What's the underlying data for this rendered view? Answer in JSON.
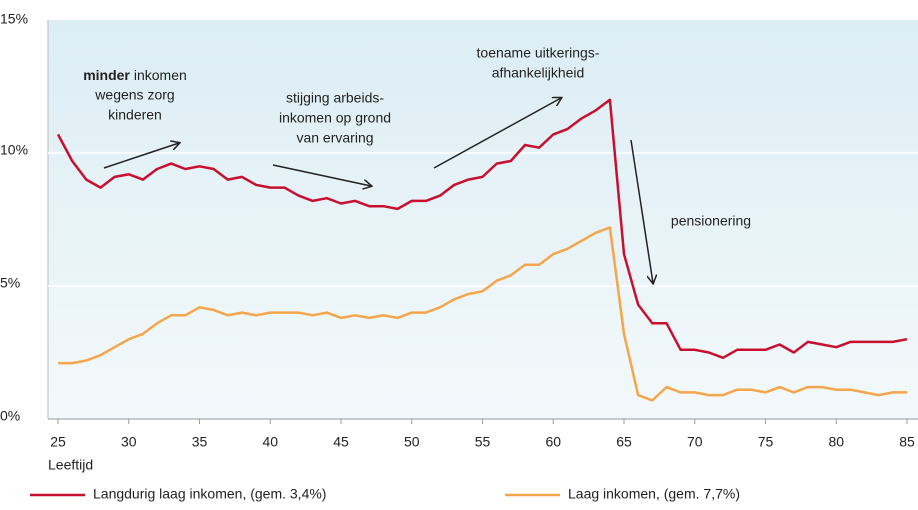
{
  "chart_data": {
    "type": "line",
    "x_label": "Leeftijd",
    "x": [
      25,
      26,
      27,
      28,
      29,
      30,
      31,
      32,
      33,
      34,
      35,
      36,
      37,
      38,
      39,
      40,
      41,
      42,
      43,
      44,
      45,
      46,
      47,
      48,
      49,
      50,
      51,
      52,
      53,
      54,
      55,
      56,
      57,
      58,
      59,
      60,
      61,
      62,
      63,
      64,
      65,
      66,
      67,
      68,
      69,
      70,
      71,
      72,
      73,
      74,
      75,
      76,
      77,
      78,
      79,
      80,
      81,
      82,
      83,
      84,
      85
    ],
    "xlim": [
      25,
      85
    ],
    "xticks": [
      25,
      30,
      35,
      40,
      45,
      50,
      55,
      60,
      65,
      70,
      75,
      80,
      85
    ],
    "ylim": [
      0,
      15
    ],
    "yticks": [
      {
        "value": 0,
        "label": "0%"
      },
      {
        "value": 5,
        "label": "5%"
      },
      {
        "value": 10,
        "label": "10%"
      },
      {
        "value": 15,
        "label": "15%"
      }
    ],
    "grid": true,
    "series": [
      {
        "name": "Langdurig laag inkomen, (gem. 3,4%)",
        "color": "#c8102e",
        "values": [
          10.7,
          9.7,
          9.0,
          8.7,
          9.1,
          9.2,
          9.0,
          9.4,
          9.6,
          9.4,
          9.5,
          9.4,
          9.0,
          9.1,
          8.8,
          8.7,
          8.7,
          8.4,
          8.2,
          8.3,
          8.1,
          8.2,
          8.0,
          8.0,
          7.9,
          8.2,
          8.2,
          8.4,
          8.8,
          9.0,
          9.1,
          9.6,
          9.7,
          10.3,
          10.2,
          10.7,
          10.9,
          11.3,
          11.6,
          12.0,
          6.2,
          4.3,
          3.6,
          3.6,
          2.6,
          2.6,
          2.5,
          2.3,
          2.6,
          2.6,
          2.6,
          2.8,
          2.5,
          2.9,
          2.8,
          2.7,
          2.9,
          2.9,
          2.9,
          2.9,
          3.0
        ]
      },
      {
        "name": "Laag inkomen, (gem. 7,7%)",
        "color": "#f5a54a",
        "values": [
          2.1,
          2.1,
          2.2,
          2.4,
          2.7,
          3.0,
          3.2,
          3.6,
          3.9,
          3.9,
          4.2,
          4.1,
          3.9,
          4.0,
          3.9,
          4.0,
          4.0,
          4.0,
          3.9,
          4.0,
          3.8,
          3.9,
          3.8,
          3.9,
          3.8,
          4.0,
          4.0,
          4.2,
          4.5,
          4.7,
          4.8,
          5.2,
          5.4,
          5.8,
          5.8,
          6.2,
          6.4,
          6.7,
          7.0,
          7.2,
          3.2,
          0.9,
          0.7,
          1.2,
          1.0,
          1.0,
          0.9,
          0.9,
          1.1,
          1.1,
          1.0,
          1.2,
          1.0,
          1.2,
          1.2,
          1.1,
          1.1,
          1.0,
          0.9,
          1.0,
          1.0
        ]
      }
    ],
    "annotations": [
      {
        "emphasis": "minder",
        "lines": [
          "inkomen",
          "wegens zorg",
          "kinderen"
        ]
      },
      {
        "lines": [
          "stijging arbeids-",
          "inkomen op grond",
          "van ervaring"
        ]
      },
      {
        "lines": [
          "toename uitkerings-",
          "afhankelijkheid"
        ]
      },
      {
        "lines": [
          "pensionering"
        ]
      }
    ]
  }
}
